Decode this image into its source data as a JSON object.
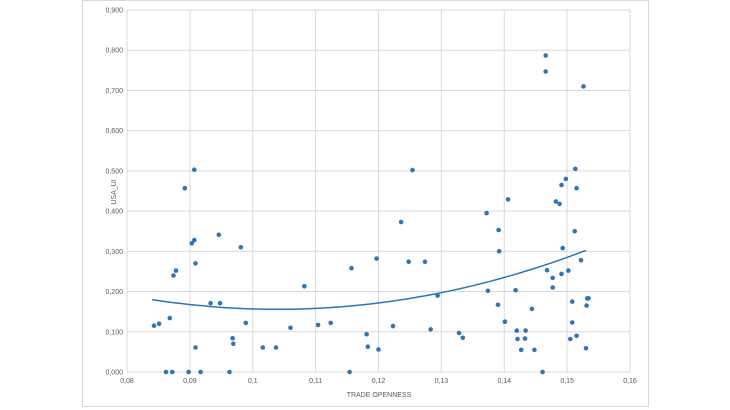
{
  "chart_data": {
    "type": "scatter",
    "title": "",
    "xlabel": "TRADE OPENNESS",
    "ylabel": "USA_UI",
    "xlim": [
      0.08,
      0.16
    ],
    "ylim": [
      0,
      0.9
    ],
    "grid": true,
    "marker_color": "#2e75b6",
    "trendline_color": "#2e75b6",
    "x_ticks": [
      "0,08",
      "0,09",
      "0,1",
      "0,11",
      "0,12",
      "0,13",
      "0,14",
      "0,15",
      "0,16"
    ],
    "y_ticks": [
      "0,000",
      "0,100",
      "0,200",
      "0,300",
      "0,400",
      "0,500",
      "0,600",
      "0,700",
      "0,800",
      "0,900"
    ],
    "trendline": {
      "type": "polynomial-2",
      "x_range": [
        0.084,
        0.153
      ],
      "points": [
        [
          0.084,
          0.181
        ],
        [
          0.1,
          0.155
        ],
        [
          0.108,
          0.157
        ],
        [
          0.12,
          0.172
        ],
        [
          0.13,
          0.196
        ],
        [
          0.14,
          0.238
        ],
        [
          0.153,
          0.301
        ]
      ]
    },
    "points": [
      [
        0.0843,
        0.115
      ],
      [
        0.0851,
        0.12
      ],
      [
        0.0862,
        0.0
      ],
      [
        0.0868,
        0.134
      ],
      [
        0.0872,
        0.0
      ],
      [
        0.0874,
        0.24
      ],
      [
        0.0878,
        0.252
      ],
      [
        0.0892,
        0.457
      ],
      [
        0.0898,
        0.0
      ],
      [
        0.0903,
        0.32
      ],
      [
        0.0907,
        0.503
      ],
      [
        0.0907,
        0.328
      ],
      [
        0.0909,
        0.061
      ],
      [
        0.0909,
        0.27
      ],
      [
        0.0917,
        0.0
      ],
      [
        0.0933,
        0.171
      ],
      [
        0.0946,
        0.341
      ],
      [
        0.0948,
        0.171
      ],
      [
        0.0963,
        0.0
      ],
      [
        0.0968,
        0.084
      ],
      [
        0.0969,
        0.07
      ],
      [
        0.0981,
        0.31
      ],
      [
        0.0989,
        0.122
      ],
      [
        0.1016,
        0.061
      ],
      [
        0.1037,
        0.061
      ],
      [
        0.106,
        0.11
      ],
      [
        0.1082,
        0.213
      ],
      [
        0.1104,
        0.117
      ],
      [
        0.1124,
        0.122
      ],
      [
        0.1154,
        0.0
      ],
      [
        0.1157,
        0.258
      ],
      [
        0.1181,
        0.094
      ],
      [
        0.1183,
        0.063
      ],
      [
        0.1197,
        0.282
      ],
      [
        0.12,
        0.056
      ],
      [
        0.1223,
        0.114
      ],
      [
        0.1236,
        0.373
      ],
      [
        0.1248,
        0.274
      ],
      [
        0.1254,
        0.502
      ],
      [
        0.1274,
        0.274
      ],
      [
        0.1283,
        0.106
      ],
      [
        0.1294,
        0.19
      ],
      [
        0.1328,
        0.097
      ],
      [
        0.1334,
        0.085
      ],
      [
        0.1372,
        0.395
      ],
      [
        0.1374,
        0.202
      ],
      [
        0.139,
        0.167
      ],
      [
        0.1391,
        0.353
      ],
      [
        0.1392,
        0.3
      ],
      [
        0.1401,
        0.125
      ],
      [
        0.1406,
        0.429
      ],
      [
        0.1418,
        0.203
      ],
      [
        0.142,
        0.103
      ],
      [
        0.1421,
        0.082
      ],
      [
        0.1427,
        0.055
      ],
      [
        0.1433,
        0.083
      ],
      [
        0.1434,
        0.103
      ],
      [
        0.1444,
        0.157
      ],
      [
        0.1448,
        0.055
      ],
      [
        0.1461,
        0.0
      ],
      [
        0.1466,
        0.787
      ],
      [
        0.1466,
        0.747
      ],
      [
        0.1468,
        0.253
      ],
      [
        0.1477,
        0.234
      ],
      [
        0.1477,
        0.21
      ],
      [
        0.1482,
        0.424
      ],
      [
        0.1488,
        0.418
      ],
      [
        0.1491,
        0.244
      ],
      [
        0.1491,
        0.465
      ],
      [
        0.1493,
        0.308
      ],
      [
        0.1498,
        0.48
      ],
      [
        0.1502,
        0.252
      ],
      [
        0.1505,
        0.082
      ],
      [
        0.1508,
        0.123
      ],
      [
        0.1508,
        0.175
      ],
      [
        0.1512,
        0.35
      ],
      [
        0.1513,
        0.505
      ],
      [
        0.1515,
        0.457
      ],
      [
        0.1515,
        0.09
      ],
      [
        0.1522,
        0.278
      ],
      [
        0.1526,
        0.71
      ],
      [
        0.153,
        0.059
      ],
      [
        0.1531,
        0.165
      ],
      [
        0.1532,
        0.183
      ],
      [
        0.1534,
        0.183
      ]
    ]
  }
}
